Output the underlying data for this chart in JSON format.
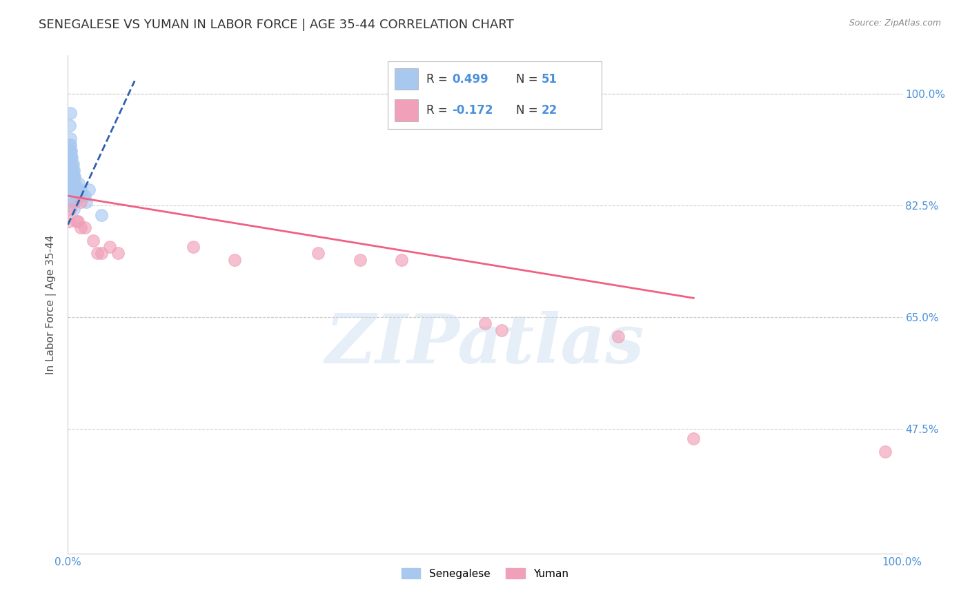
{
  "title": "SENEGALESE VS YUMAN IN LABOR FORCE | AGE 35-44 CORRELATION CHART",
  "source_text": "Source: ZipAtlas.com",
  "ylabel": "In Labor Force | Age 35-44",
  "xlim": [
    0.0,
    1.0
  ],
  "ylim": [
    0.28,
    1.06
  ],
  "xticks": [
    0.0,
    0.125,
    0.25,
    0.375,
    0.5,
    0.625,
    0.75,
    0.875,
    1.0
  ],
  "xticklabels": [
    "0.0%",
    "",
    "",
    "",
    "",
    "",
    "",
    "",
    "100.0%"
  ],
  "ytick_positions": [
    0.475,
    0.65,
    0.825,
    1.0
  ],
  "right_yticklabels": [
    "47.5%",
    "65.0%",
    "82.5%",
    "100.0%"
  ],
  "watermark_text": "ZIPatlas",
  "blue_color": "#A8C8F0",
  "pink_color": "#F0A0B8",
  "blue_line_color": "#3060B0",
  "pink_line_color": "#F06080",
  "blue_scatter_x": [
    0.001,
    0.001,
    0.001,
    0.002,
    0.002,
    0.002,
    0.002,
    0.003,
    0.003,
    0.003,
    0.003,
    0.003,
    0.004,
    0.004,
    0.004,
    0.004,
    0.005,
    0.005,
    0.005,
    0.005,
    0.005,
    0.006,
    0.006,
    0.006,
    0.006,
    0.007,
    0.007,
    0.007,
    0.008,
    0.008,
    0.009,
    0.009,
    0.01,
    0.01,
    0.011,
    0.012,
    0.013,
    0.014,
    0.015,
    0.017,
    0.02,
    0.022,
    0.025,
    0.002,
    0.003,
    0.004,
    0.005,
    0.006,
    0.007,
    0.008,
    0.04
  ],
  "blue_scatter_y": [
    0.88,
    0.87,
    0.86,
    0.92,
    0.91,
    0.9,
    0.89,
    0.93,
    0.92,
    0.91,
    0.88,
    0.87,
    0.91,
    0.9,
    0.89,
    0.86,
    0.9,
    0.89,
    0.88,
    0.87,
    0.85,
    0.89,
    0.88,
    0.87,
    0.86,
    0.88,
    0.87,
    0.86,
    0.87,
    0.85,
    0.86,
    0.85,
    0.85,
    0.84,
    0.85,
    0.85,
    0.86,
    0.84,
    0.85,
    0.84,
    0.84,
    0.83,
    0.85,
    0.95,
    0.97,
    0.85,
    0.84,
    0.83,
    0.82,
    0.83,
    0.81
  ],
  "pink_scatter_x": [
    0.001,
    0.003,
    0.01,
    0.012,
    0.015,
    0.015,
    0.02,
    0.03,
    0.035,
    0.04,
    0.05,
    0.06,
    0.15,
    0.2,
    0.3,
    0.35,
    0.4,
    0.5,
    0.52,
    0.66,
    0.75,
    0.98
  ],
  "pink_scatter_y": [
    0.8,
    0.82,
    0.8,
    0.8,
    0.83,
    0.79,
    0.79,
    0.77,
    0.75,
    0.75,
    0.76,
    0.75,
    0.76,
    0.74,
    0.75,
    0.74,
    0.74,
    0.64,
    0.63,
    0.62,
    0.46,
    0.44
  ],
  "blue_line_x": [
    0.0,
    0.08
  ],
  "blue_line_y": [
    0.795,
    1.02
  ],
  "pink_line_x": [
    0.0,
    0.75
  ],
  "pink_line_y": [
    0.84,
    0.68
  ],
  "background_color": "#FFFFFF",
  "grid_color": "#CCCCCC",
  "title_color": "#333333",
  "axis_label_color": "#555555",
  "tick_label_color": "#4A90D9",
  "legend_blue_r": "R = 0.499",
  "legend_blue_n": "N = 51",
  "legend_pink_r": "R = -0.172",
  "legend_pink_n": "N = 22"
}
